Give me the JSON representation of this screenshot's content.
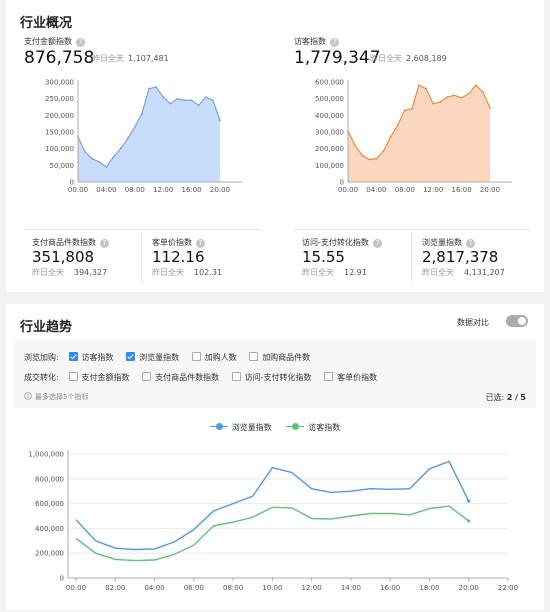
{
  "overview": {
    "title": "行业概况",
    "pay_amount": {
      "label": "支付金额指数",
      "value": "876,758",
      "ref_label": "昨日全天",
      "ref_value": "1,107,481"
    },
    "visitors": {
      "label": "访客指数",
      "value": "1,779,347",
      "ref_label": "昨日全天",
      "ref_value": "2,608,189"
    },
    "pay_items": {
      "label": "支付商品件数指数",
      "value": "351,808",
      "ref_label": "昨日全天",
      "ref_value": "394,327"
    },
    "unit_price": {
      "label": "客单价指数",
      "value": "112.16",
      "ref_label": "昨日全天",
      "ref_value": "102.31"
    },
    "conversion": {
      "label": "访问-支付转化指数",
      "value": "15.55",
      "ref_label": "昨日全天",
      "ref_value": "12.91"
    },
    "pageviews": {
      "label": "浏览量指数",
      "value": "2,817,378",
      "ref_label": "昨日全天",
      "ref_value": "4,131,207"
    },
    "help_glyph": "?"
  },
  "trend": {
    "title": "行业趋势",
    "compare_label": "数据对比",
    "compare_on": false,
    "browse_row": {
      "label": "浏览加购:",
      "options": [
        {
          "label": "访客指数",
          "checked": true
        },
        {
          "label": "浏览量指数",
          "checked": true
        },
        {
          "label": "加购人数",
          "checked": false
        },
        {
          "label": "加购商品件数",
          "checked": false
        }
      ]
    },
    "deal_row": {
      "label": "成交转化:",
      "options": [
        {
          "label": "支付金额指数",
          "checked": false
        },
        {
          "label": "支付商品件数指数",
          "checked": false
        },
        {
          "label": "访问-支付转化指数",
          "checked": false
        },
        {
          "label": "客单价指数",
          "checked": false
        }
      ]
    },
    "hint": "最多选择5个指标",
    "hint_icon": "info-icon",
    "selected_label": "已选:",
    "selected_count": "2",
    "selected_sep": "/",
    "selected_max": "5"
  },
  "colors": {
    "blue_fill": "#c8ddfb",
    "blue_line": "#6f9fd8",
    "orange_fill": "#fcd7c0",
    "orange_line": "#e8853a",
    "series_blue": "#4a9be0",
    "series_green": "#5cc378",
    "accent": "#2d8cf0"
  },
  "chart_data": [
    {
      "type": "area",
      "title": "",
      "x_ticks": [
        "00:00",
        "04:00",
        "08:00",
        "12:00",
        "16:00",
        "20:00"
      ],
      "y_ticks": [
        "0",
        "50,000",
        "100,000",
        "150,000",
        "200,000",
        "250,000",
        "300,000"
      ],
      "ylim": [
        0,
        300000
      ],
      "x": [
        0,
        1,
        2,
        3,
        4,
        5,
        6,
        7,
        8,
        9,
        10,
        11,
        12,
        13,
        14,
        15,
        16,
        17,
        18,
        19,
        20
      ],
      "series": [
        {
          "values": [
            135000,
            90000,
            70000,
            60000,
            45000,
            75000,
            100000,
            130000,
            165000,
            205000,
            280000,
            285000,
            255000,
            235000,
            250000,
            245000,
            245000,
            230000,
            255000,
            245000,
            185000
          ]
        }
      ]
    },
    {
      "type": "area",
      "title": "",
      "x_ticks": [
        "00:00",
        "04:00",
        "08:00",
        "12:00",
        "16:00",
        "20:00"
      ],
      "y_ticks": [
        "0",
        "100,000",
        "200,000",
        "300,000",
        "400,000",
        "500,000",
        "600,000"
      ],
      "ylim": [
        0,
        600000
      ],
      "x": [
        0,
        1,
        2,
        3,
        4,
        5,
        6,
        7,
        8,
        9,
        10,
        11,
        12,
        13,
        14,
        15,
        16,
        17,
        18,
        19,
        20
      ],
      "series": [
        {
          "values": [
            305000,
            220000,
            160000,
            135000,
            140000,
            185000,
            270000,
            340000,
            430000,
            440000,
            580000,
            560000,
            470000,
            480000,
            510000,
            520000,
            505000,
            530000,
            580000,
            540000,
            445000
          ]
        }
      ]
    },
    {
      "type": "line",
      "title": "",
      "x_ticks": [
        "00:00",
        "02:00",
        "04:00",
        "06:00",
        "08:00",
        "10:00",
        "12:00",
        "14:00",
        "16:00",
        "18:00",
        "20:00",
        "22:00"
      ],
      "y_ticks": [
        "0",
        "200,000",
        "400,000",
        "600,000",
        "800,000",
        "1,000,000"
      ],
      "ylim": [
        0,
        1000000
      ],
      "x": [
        0,
        1,
        2,
        3,
        4,
        5,
        6,
        7,
        8,
        9,
        10,
        11,
        12,
        13,
        14,
        15,
        16,
        17,
        18,
        19,
        20
      ],
      "series": [
        {
          "name": "浏览量指数",
          "values": [
            470000,
            300000,
            240000,
            230000,
            235000,
            290000,
            390000,
            540000,
            600000,
            660000,
            890000,
            850000,
            720000,
            690000,
            700000,
            720000,
            715000,
            720000,
            880000,
            940000,
            620000
          ]
        },
        {
          "name": "访客指数",
          "values": [
            320000,
            200000,
            150000,
            140000,
            145000,
            190000,
            265000,
            420000,
            450000,
            490000,
            570000,
            565000,
            480000,
            475000,
            500000,
            520000,
            520000,
            510000,
            560000,
            580000,
            460000
          ]
        }
      ],
      "legend": "top-center"
    }
  ]
}
